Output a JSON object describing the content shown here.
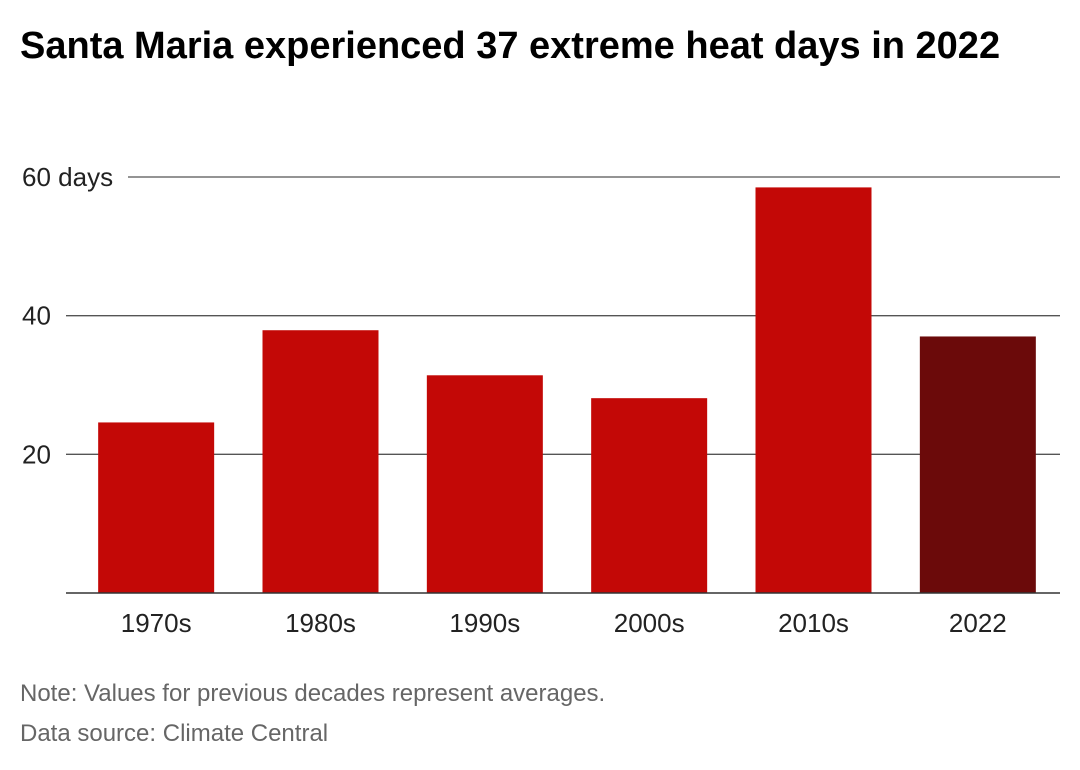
{
  "title": "Santa Maria experienced 37 extreme heat days in 2022",
  "notes": {
    "note": "Note: Values for previous decades represent averages.",
    "source": "Data source: Climate Central"
  },
  "chart_data": {
    "type": "bar",
    "categories": [
      "1970s",
      "1980s",
      "1990s",
      "2000s",
      "2010s",
      "2022"
    ],
    "values": [
      24.6,
      37.9,
      31.4,
      28.1,
      58.5,
      37.0
    ],
    "ylim": [
      0,
      60
    ],
    "yticks": [
      20,
      40,
      60
    ],
    "ytick_labels": [
      "20",
      "40",
      "60 days"
    ],
    "grid": true,
    "colors": {
      "bar": "#c30806",
      "highlight": "#6b0a0a",
      "grid": "#555555",
      "tick_text": "#222222"
    },
    "highlight_category": "2022"
  }
}
